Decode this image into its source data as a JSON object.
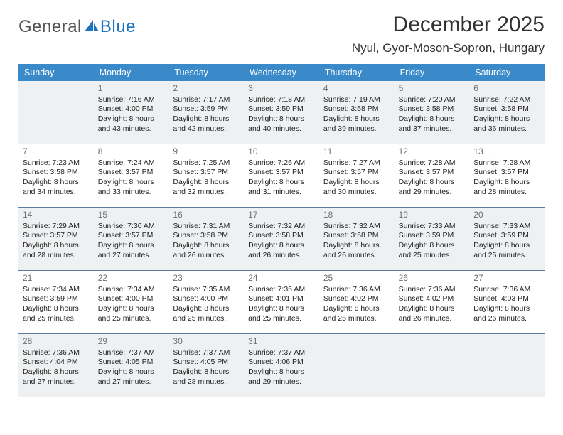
{
  "brand": {
    "part1": "General",
    "part2": "Blue"
  },
  "header": {
    "month_title": "December 2025",
    "location": "Nyul, Gyor-Moson-Sopron, Hungary"
  },
  "colors": {
    "header_bg": "#3a8ac9",
    "divider": "#5b7ba0",
    "shade_bg": "#eef0f2",
    "brand_blue": "#1e73be"
  },
  "day_labels": [
    "Sunday",
    "Monday",
    "Tuesday",
    "Wednesday",
    "Thursday",
    "Friday",
    "Saturday"
  ],
  "weeks": [
    [
      {
        "day": "",
        "sunrise": "",
        "sunset": "",
        "daylight": ""
      },
      {
        "day": "1",
        "sunrise": "Sunrise: 7:16 AM",
        "sunset": "Sunset: 4:00 PM",
        "daylight": "Daylight: 8 hours and 43 minutes."
      },
      {
        "day": "2",
        "sunrise": "Sunrise: 7:17 AM",
        "sunset": "Sunset: 3:59 PM",
        "daylight": "Daylight: 8 hours and 42 minutes."
      },
      {
        "day": "3",
        "sunrise": "Sunrise: 7:18 AM",
        "sunset": "Sunset: 3:59 PM",
        "daylight": "Daylight: 8 hours and 40 minutes."
      },
      {
        "day": "4",
        "sunrise": "Sunrise: 7:19 AM",
        "sunset": "Sunset: 3:58 PM",
        "daylight": "Daylight: 8 hours and 39 minutes."
      },
      {
        "day": "5",
        "sunrise": "Sunrise: 7:20 AM",
        "sunset": "Sunset: 3:58 PM",
        "daylight": "Daylight: 8 hours and 37 minutes."
      },
      {
        "day": "6",
        "sunrise": "Sunrise: 7:22 AM",
        "sunset": "Sunset: 3:58 PM",
        "daylight": "Daylight: 8 hours and 36 minutes."
      }
    ],
    [
      {
        "day": "7",
        "sunrise": "Sunrise: 7:23 AM",
        "sunset": "Sunset: 3:58 PM",
        "daylight": "Daylight: 8 hours and 34 minutes."
      },
      {
        "day": "8",
        "sunrise": "Sunrise: 7:24 AM",
        "sunset": "Sunset: 3:57 PM",
        "daylight": "Daylight: 8 hours and 33 minutes."
      },
      {
        "day": "9",
        "sunrise": "Sunrise: 7:25 AM",
        "sunset": "Sunset: 3:57 PM",
        "daylight": "Daylight: 8 hours and 32 minutes."
      },
      {
        "day": "10",
        "sunrise": "Sunrise: 7:26 AM",
        "sunset": "Sunset: 3:57 PM",
        "daylight": "Daylight: 8 hours and 31 minutes."
      },
      {
        "day": "11",
        "sunrise": "Sunrise: 7:27 AM",
        "sunset": "Sunset: 3:57 PM",
        "daylight": "Daylight: 8 hours and 30 minutes."
      },
      {
        "day": "12",
        "sunrise": "Sunrise: 7:28 AM",
        "sunset": "Sunset: 3:57 PM",
        "daylight": "Daylight: 8 hours and 29 minutes."
      },
      {
        "day": "13",
        "sunrise": "Sunrise: 7:28 AM",
        "sunset": "Sunset: 3:57 PM",
        "daylight": "Daylight: 8 hours and 28 minutes."
      }
    ],
    [
      {
        "day": "14",
        "sunrise": "Sunrise: 7:29 AM",
        "sunset": "Sunset: 3:57 PM",
        "daylight": "Daylight: 8 hours and 28 minutes."
      },
      {
        "day": "15",
        "sunrise": "Sunrise: 7:30 AM",
        "sunset": "Sunset: 3:57 PM",
        "daylight": "Daylight: 8 hours and 27 minutes."
      },
      {
        "day": "16",
        "sunrise": "Sunrise: 7:31 AM",
        "sunset": "Sunset: 3:58 PM",
        "daylight": "Daylight: 8 hours and 26 minutes."
      },
      {
        "day": "17",
        "sunrise": "Sunrise: 7:32 AM",
        "sunset": "Sunset: 3:58 PM",
        "daylight": "Daylight: 8 hours and 26 minutes."
      },
      {
        "day": "18",
        "sunrise": "Sunrise: 7:32 AM",
        "sunset": "Sunset: 3:58 PM",
        "daylight": "Daylight: 8 hours and 26 minutes."
      },
      {
        "day": "19",
        "sunrise": "Sunrise: 7:33 AM",
        "sunset": "Sunset: 3:59 PM",
        "daylight": "Daylight: 8 hours and 25 minutes."
      },
      {
        "day": "20",
        "sunrise": "Sunrise: 7:33 AM",
        "sunset": "Sunset: 3:59 PM",
        "daylight": "Daylight: 8 hours and 25 minutes."
      }
    ],
    [
      {
        "day": "21",
        "sunrise": "Sunrise: 7:34 AM",
        "sunset": "Sunset: 3:59 PM",
        "daylight": "Daylight: 8 hours and 25 minutes."
      },
      {
        "day": "22",
        "sunrise": "Sunrise: 7:34 AM",
        "sunset": "Sunset: 4:00 PM",
        "daylight": "Daylight: 8 hours and 25 minutes."
      },
      {
        "day": "23",
        "sunrise": "Sunrise: 7:35 AM",
        "sunset": "Sunset: 4:00 PM",
        "daylight": "Daylight: 8 hours and 25 minutes."
      },
      {
        "day": "24",
        "sunrise": "Sunrise: 7:35 AM",
        "sunset": "Sunset: 4:01 PM",
        "daylight": "Daylight: 8 hours and 25 minutes."
      },
      {
        "day": "25",
        "sunrise": "Sunrise: 7:36 AM",
        "sunset": "Sunset: 4:02 PM",
        "daylight": "Daylight: 8 hours and 25 minutes."
      },
      {
        "day": "26",
        "sunrise": "Sunrise: 7:36 AM",
        "sunset": "Sunset: 4:02 PM",
        "daylight": "Daylight: 8 hours and 26 minutes."
      },
      {
        "day": "27",
        "sunrise": "Sunrise: 7:36 AM",
        "sunset": "Sunset: 4:03 PM",
        "daylight": "Daylight: 8 hours and 26 minutes."
      }
    ],
    [
      {
        "day": "28",
        "sunrise": "Sunrise: 7:36 AM",
        "sunset": "Sunset: 4:04 PM",
        "daylight": "Daylight: 8 hours and 27 minutes."
      },
      {
        "day": "29",
        "sunrise": "Sunrise: 7:37 AM",
        "sunset": "Sunset: 4:05 PM",
        "daylight": "Daylight: 8 hours and 27 minutes."
      },
      {
        "day": "30",
        "sunrise": "Sunrise: 7:37 AM",
        "sunset": "Sunset: 4:05 PM",
        "daylight": "Daylight: 8 hours and 28 minutes."
      },
      {
        "day": "31",
        "sunrise": "Sunrise: 7:37 AM",
        "sunset": "Sunset: 4:06 PM",
        "daylight": "Daylight: 8 hours and 29 minutes."
      },
      {
        "day": "",
        "sunrise": "",
        "sunset": "",
        "daylight": ""
      },
      {
        "day": "",
        "sunrise": "",
        "sunset": "",
        "daylight": ""
      },
      {
        "day": "",
        "sunrise": "",
        "sunset": "",
        "daylight": ""
      }
    ]
  ]
}
